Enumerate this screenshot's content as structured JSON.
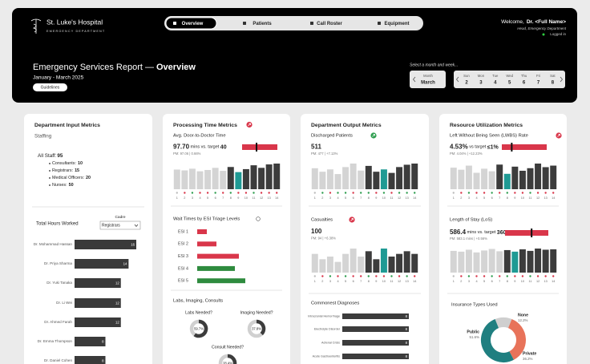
{
  "header": {
    "hospital": "St. Luke's Hospital",
    "department": "EMERGENCY DEPARTMENT",
    "nav": [
      "Overview",
      "Patients",
      "Call Roster",
      "Equipment"
    ],
    "active_nav": 0,
    "welcome": "Welcome,",
    "user": "Dr. <Full Name>",
    "role": "Head, Emergency Department",
    "status": "Logged in"
  },
  "report": {
    "title": "Emergency Services Report —",
    "title_bold": "Overview",
    "period": "January - March 2025",
    "button": "Guidelines",
    "picker_prompt": "Select a month and week...",
    "month_label": "Month",
    "month": "March",
    "days": [
      {
        "name": "Sun",
        "date": 2
      },
      {
        "name": "Mon",
        "date": 3
      },
      {
        "name": "Tue",
        "date": 4
      },
      {
        "name": "Wed",
        "date": 5
      },
      {
        "name": "Thu",
        "date": 6
      },
      {
        "name": "Fri",
        "date": 7
      },
      {
        "name": "Sat",
        "date": 8
      }
    ]
  },
  "input": {
    "title": "Department Input Metrics",
    "staffing": "Staffing",
    "all_staff_label": "All Staff:",
    "all_staff": 95,
    "staff": [
      {
        "label": "Consultants:",
        "value": 10
      },
      {
        "label": "Registrars:",
        "value": 15
      },
      {
        "label": "Medical Officers:",
        "value": 20
      },
      {
        "label": "Nurses:",
        "value": 50
      }
    ],
    "hours_title": "Total Hours Worked",
    "cadre_label": "Cadre",
    "cadre": "Registrars",
    "hours": {
      "type": "bar",
      "categories": [
        "Dr. Mohammad Hassan",
        "Dr. Priya Sharma",
        "Dr. Yuki Tanaka",
        "Dr. Li Wei",
        "Dr. Ahmed Farah",
        "Dr. Emma Thompson",
        "Dr. Daniel Cohen"
      ],
      "values": [
        16,
        14,
        12,
        12,
        12,
        8,
        8
      ],
      "color": "#3a3a3a"
    }
  },
  "processing": {
    "title": "Processing Time Metrics",
    "door": {
      "label": "Avg. Door-to-Doctor Time",
      "status": "bad",
      "value": 97.7,
      "value_label": "97.70",
      "unit": "mins vs. target",
      "target": 40,
      "pm": "PM: 97.06 | 0.66%",
      "daily": {
        "type": "bar",
        "categories": [
          1,
          2,
          3,
          4,
          5,
          6,
          7,
          8,
          9,
          10,
          11,
          12,
          13,
          14
        ],
        "values": [
          92,
          88,
          96,
          84,
          90,
          100,
          86,
          104,
          80,
          94,
          112,
          100,
          116,
          120
        ],
        "colors": [
          "#d4d4d4",
          "#d4d4d4",
          "#d4d4d4",
          "#d4d4d4",
          "#d4d4d4",
          "#d4d4d4",
          "#d4d4d4",
          "#3c3c3c",
          "#1f9a94",
          "#3c3c3c",
          "#3c3c3c",
          "#3c3c3c",
          "#3c3c3c",
          "#3c3c3c"
        ],
        "dot_colors": [
          "#bdbdbd",
          "#d9364a",
          "#2e9e4f",
          "#d9364a",
          "#d9364a",
          "#2e9e4f",
          "#d9364a",
          "#2e9e4f",
          "#d9364a",
          "#d9364a",
          "#2e9e4f",
          "#d9364a",
          "#d9364a",
          "#d9364a"
        ]
      }
    },
    "esi": {
      "title": "Wait Times by ESI Triage Levels",
      "type": "bar",
      "categories": [
        "ESI 1",
        "ESI 2",
        "ESI 3",
        "ESI 4",
        "ESI 5"
      ],
      "values": [
        12,
        24,
        52,
        47,
        60
      ],
      "colors": [
        "#d9364a",
        "#d9364a",
        "#d9364a",
        "#2e8b3e",
        "#2e8b3e"
      ]
    },
    "labs": {
      "title": "Labs, Imaging, Consults",
      "items": [
        {
          "label": "Labs Needed?",
          "value": 59.7,
          "value_label": "59.7%"
        },
        {
          "label": "Imaging Needed?",
          "value": 37.8,
          "value_label": "37.8%"
        },
        {
          "label": "Consult Needed?",
          "value": 28.4,
          "value_label": "28.4%"
        }
      ]
    }
  },
  "output": {
    "title": "Department Output Metrics",
    "discharged": {
      "label": "Discharged Patients",
      "status": "good",
      "value": 511,
      "pm": "PM: 477 | +7.13%",
      "daily": {
        "type": "bar",
        "categories": [
          1,
          2,
          3,
          4,
          5,
          6,
          7,
          8,
          9,
          10,
          11,
          12,
          13,
          14
        ],
        "values": [
          36,
          30,
          34,
          26,
          38,
          44,
          32,
          40,
          30,
          34,
          28,
          38,
          42,
          44
        ],
        "colors": [
          "#d4d4d4",
          "#d4d4d4",
          "#d4d4d4",
          "#d4d4d4",
          "#d4d4d4",
          "#d4d4d4",
          "#d4d4d4",
          "#3c3c3c",
          "#3c3c3c",
          "#1f9a94",
          "#3c3c3c",
          "#3c3c3c",
          "#3c3c3c",
          "#3c3c3c"
        ],
        "dot_colors": [
          "#bdbdbd",
          "#2e9e4f",
          "#d9364a",
          "#2e9e4f",
          "#2e9e4f",
          "#d9364a",
          "#2e9e4f",
          "#2e9e4f",
          "#d9364a",
          "#2e9e4f",
          "#d9364a",
          "#2e9e4f",
          "#2e9e4f",
          "#2e9e4f"
        ]
      }
    },
    "casualties": {
      "label": "Casualties",
      "status": "bad",
      "value": 100,
      "pm": "PM: 94 | +6.38%",
      "daily": {
        "type": "bar",
        "categories": [
          1,
          2,
          3,
          4,
          5,
          6,
          7,
          8,
          9,
          10,
          11,
          12,
          13,
          14
        ],
        "values": [
          7,
          5,
          6,
          4,
          7,
          9,
          6,
          8,
          5,
          9,
          6,
          7,
          8,
          7
        ],
        "colors": [
          "#d4d4d4",
          "#d4d4d4",
          "#d4d4d4",
          "#d4d4d4",
          "#d4d4d4",
          "#d4d4d4",
          "#d4d4d4",
          "#3c3c3c",
          "#3c3c3c",
          "#1f9a94",
          "#3c3c3c",
          "#3c3c3c",
          "#3c3c3c",
          "#3c3c3c"
        ],
        "dot_colors": [
          "#bdbdbd",
          "#d9364a",
          "#2e9e4f",
          "#d9364a",
          "#2e9e4f",
          "#d9364a",
          "#d9364a",
          "#2e9e4f",
          "#d9364a",
          "#d9364a",
          "#2e9e4f",
          "#d9364a",
          "#2e9e4f",
          "#d9364a"
        ]
      }
    },
    "diagnoses": {
      "title": "Commonest Diagnoses",
      "type": "bar",
      "categories": [
        "Intracranial Hemorrhage",
        "Electrolyte Disorder",
        "Adrenal Crisis",
        "Acute Gastroenteritis"
      ],
      "values": [
        8,
        8,
        8,
        8
      ],
      "color": "#3c3c3c"
    }
  },
  "resource": {
    "title": "Resource Utilization Metrics",
    "lwbs": {
      "label": "Left Without Being Seen (LWBS) Rate",
      "status": "bad",
      "value": 4.53,
      "value_label": "4.53%",
      "unit": "vs target",
      "target": 1,
      "target_label": "≤1%",
      "pm": "PM: 4.04% | +12.23%",
      "daily": {
        "type": "bar",
        "categories": [
          1,
          2,
          3,
          4,
          5,
          6,
          7,
          8,
          9,
          10,
          11,
          12,
          13,
          14
        ],
        "values": [
          4.2,
          3.8,
          4.6,
          3.2,
          4.0,
          3.5,
          4.8,
          3.0,
          4.4,
          3.6,
          4.1,
          5.0,
          4.3,
          4.6
        ],
        "colors": [
          "#d4d4d4",
          "#d4d4d4",
          "#d4d4d4",
          "#d4d4d4",
          "#d4d4d4",
          "#d4d4d4",
          "#3c3c3c",
          "#1f9a94",
          "#3c3c3c",
          "#3c3c3c",
          "#3c3c3c",
          "#3c3c3c",
          "#3c3c3c",
          "#3c3c3c"
        ],
        "dot_colors": [
          "#bdbdbd",
          "#d9364a",
          "#2e9e4f",
          "#d9364a",
          "#d9364a",
          "#2e9e4f",
          "#d9364a",
          "#2e9e4f",
          "#d9364a",
          "#d9364a",
          "#2e9e4f",
          "#d9364a",
          "#d9364a",
          "#d9364a"
        ]
      }
    },
    "los": {
      "label": "Length of Stay (LoS)",
      "value": 586.4,
      "value_label": "586.4",
      "unit": "mins vs. target",
      "target": 360,
      "pm": "PM: 583.1 mins | +0.56%",
      "daily": {
        "type": "bar",
        "categories": [
          1,
          2,
          3,
          4,
          5,
          6,
          7,
          8,
          9,
          10,
          11,
          12,
          13,
          14
        ],
        "values": [
          560,
          540,
          590,
          520,
          570,
          610,
          550,
          580,
          540,
          600,
          560,
          620,
          590,
          600
        ],
        "colors": [
          "#d4d4d4",
          "#d4d4d4",
          "#d4d4d4",
          "#d4d4d4",
          "#d4d4d4",
          "#d4d4d4",
          "#d4d4d4",
          "#3c3c3c",
          "#1f9a94",
          "#3c3c3c",
          "#3c3c3c",
          "#3c3c3c",
          "#3c3c3c",
          "#3c3c3c"
        ],
        "dot_colors": [
          "#bdbdbd",
          "#d9364a",
          "#2e9e4f",
          "#d9364a",
          "#d9364a",
          "#2e9e4f",
          "#d9364a",
          "#2e9e4f",
          "#d9364a",
          "#d9364a",
          "#2e9e4f",
          "#d9364a",
          "#d9364a",
          "#d9364a"
        ]
      }
    },
    "insurance": {
      "title": "Insurance Types Used",
      "type": "pie",
      "categories": [
        "None",
        "Public",
        "Private"
      ],
      "values": [
        12.2,
        51.6,
        36.2
      ],
      "value_labels": [
        "12.2%",
        "51.6%",
        "36.2%"
      ],
      "colors": [
        "#cfcfcf",
        "#1f7f80",
        "#e8735a"
      ]
    }
  }
}
